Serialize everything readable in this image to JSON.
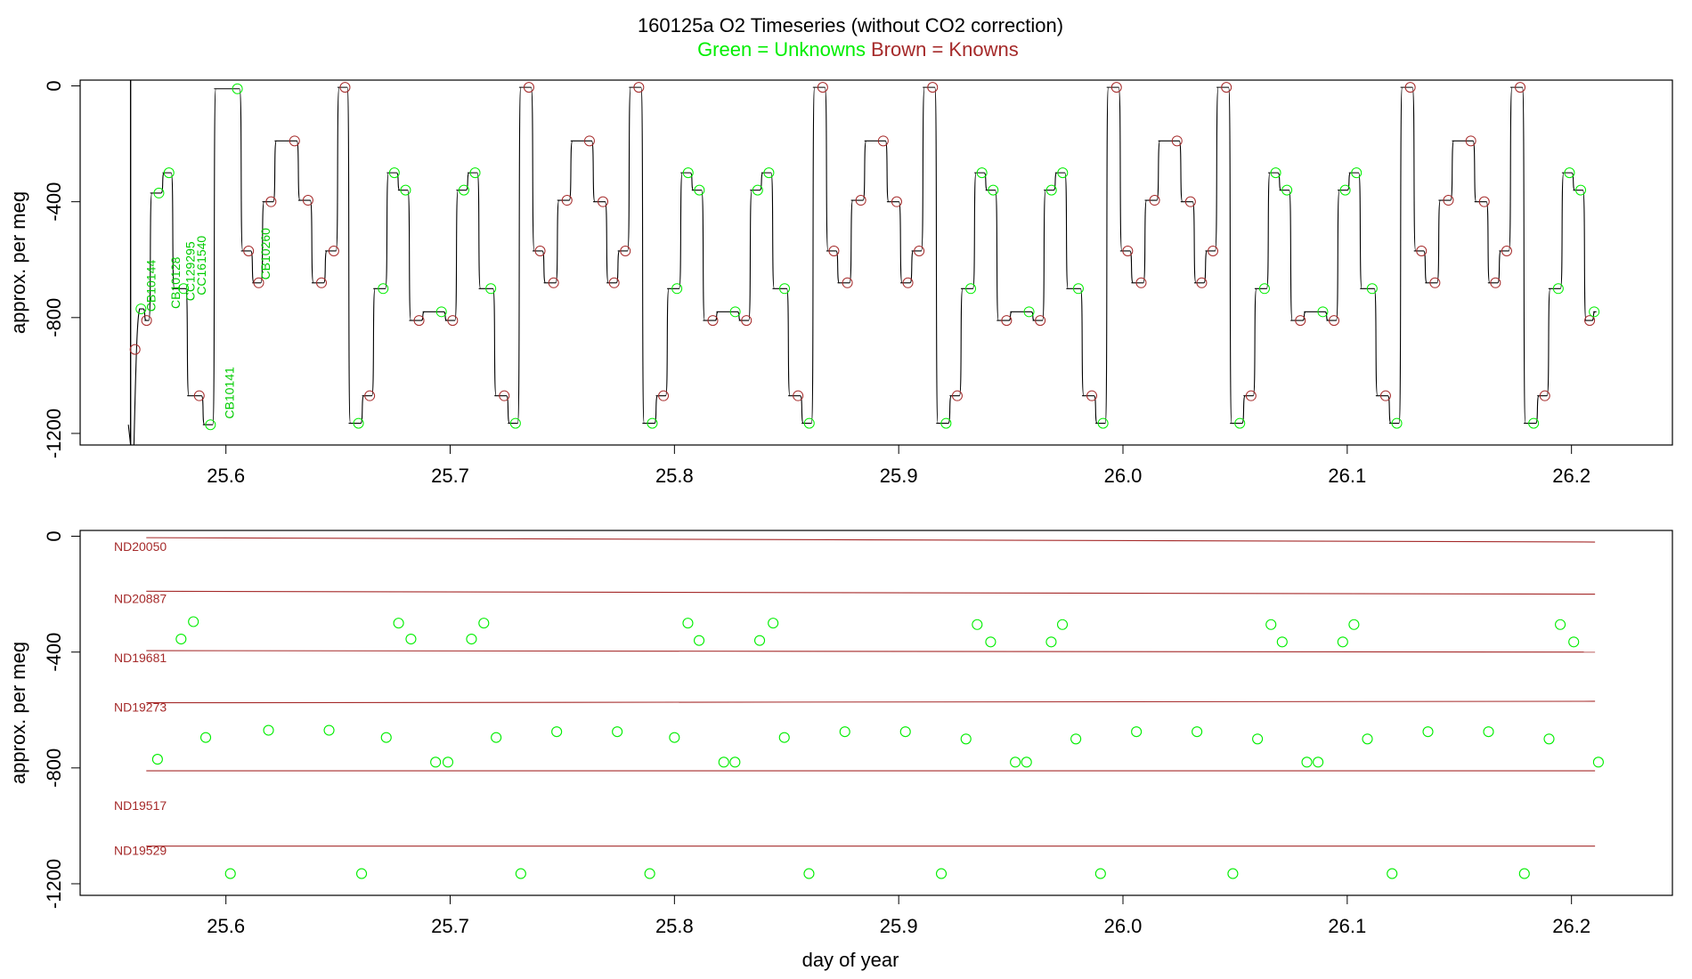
{
  "header": {
    "title": "160125a   O2 Timeseries (without CO2 correction)",
    "legend_unknowns": "Green = Unknowns",
    "legend_knowns": "Brown = Knowns"
  },
  "colors": {
    "unknown": "#00ee00",
    "known": "#a52a2a",
    "trace": "#000000"
  },
  "chart_data": [
    {
      "type": "line",
      "panel": "top",
      "title": "160125a   O2 Timeseries (without CO2 correction)",
      "xlabel": "",
      "ylabel": "approx. per meg",
      "xlim": [
        25.535,
        26.245
      ],
      "ylim": [
        -1240,
        20
      ],
      "xticks": [
        "25.6",
        "25.7",
        "25.8",
        "25.9",
        "26.0",
        "26.1",
        "26.2"
      ],
      "yticks": [
        "0",
        "-400",
        "-800",
        "-1200"
      ],
      "sample_labels": [
        {
          "text": "CB10144",
          "x": 25.5685,
          "y": -690
        },
        {
          "text": "CB10128",
          "x": 25.5795,
          "y": -680
        },
        {
          "text": "CC129295",
          "x": 25.586,
          "y": -640
        },
        {
          "text": "CC161540",
          "x": 25.591,
          "y": -620
        },
        {
          "text": "CB10141",
          "x": 25.6035,
          "y": -1060
        },
        {
          "text": "CB10260",
          "x": 25.6195,
          "y": -580
        }
      ],
      "series": [
        {
          "label": "trace",
          "segments": [
            [
              25.5615,
              -770
            ],
            [
              25.5645,
              -810
            ],
            [
              25.567,
              -370
            ],
            [
              25.5725,
              -300
            ],
            [
              25.577,
              -700
            ],
            [
              25.5835,
              -1070
            ],
            [
              25.5905,
              -1170
            ],
            [
              25.5955,
              -10
            ],
            [
              25.6075,
              -570
            ],
            [
              25.6125,
              -680
            ],
            [
              25.617,
              -400
            ],
            [
              25.6225,
              -190
            ],
            [
              25.633,
              -395
            ],
            [
              25.639,
              -680
            ],
            [
              25.645,
              -570
            ],
            [
              25.6505,
              -5
            ],
            [
              25.6555,
              -1165
            ],
            [
              25.6615,
              -1070
            ],
            [
              25.6665,
              -700
            ],
            [
              25.6725,
              -300
            ],
            [
              25.6775,
              -360
            ],
            [
              25.6825,
              -810
            ],
            [
              25.6885,
              -780
            ],
            [
              25.6985,
              -810
            ],
            [
              25.7035,
              -360
            ],
            [
              25.7085,
              -300
            ],
            [
              25.7135,
              -700
            ],
            [
              25.7205,
              -1070
            ],
            [
              25.7265,
              -1165
            ],
            [
              25.7315,
              -5
            ],
            [
              25.7375,
              -570
            ],
            [
              25.7425,
              -680
            ],
            [
              25.7485,
              -395
            ],
            [
              25.7545,
              -190
            ],
            [
              25.7645,
              -400
            ],
            [
              25.7705,
              -680
            ],
            [
              25.7755,
              -570
            ],
            [
              25.7805,
              -5
            ],
            [
              25.7865,
              -1165
            ],
            [
              25.7925,
              -1070
            ],
            [
              25.7975,
              -700
            ],
            [
              25.8035,
              -300
            ],
            [
              25.8085,
              -360
            ],
            [
              25.8135,
              -810
            ],
            [
              25.8195,
              -780
            ],
            [
              25.8295,
              -810
            ],
            [
              25.8345,
              -360
            ],
            [
              25.8395,
              -300
            ],
            [
              25.8445,
              -700
            ],
            [
              25.8515,
              -1070
            ],
            [
              25.8575,
              -1165
            ],
            [
              25.8625,
              -5
            ],
            [
              25.8685,
              -570
            ],
            [
              25.8735,
              -680
            ],
            [
              25.8795,
              -395
            ],
            [
              25.8855,
              -190
            ],
            [
              25.8955,
              -400
            ],
            [
              25.9015,
              -680
            ],
            [
              25.9065,
              -570
            ],
            [
              25.9115,
              -5
            ],
            [
              25.9175,
              -1165
            ],
            [
              25.9235,
              -1070
            ],
            [
              25.9285,
              -700
            ],
            [
              25.9345,
              -300
            ],
            [
              25.9395,
              -360
            ],
            [
              25.9445,
              -810
            ],
            [
              25.9505,
              -780
            ],
            [
              25.9605,
              -810
            ],
            [
              25.9655,
              -360
            ],
            [
              25.9705,
              -300
            ],
            [
              25.9755,
              -700
            ],
            [
              25.9825,
              -1070
            ],
            [
              25.9885,
              -1165
            ],
            [
              25.9935,
              -5
            ],
            [
              25.9995,
              -570
            ],
            [
              26.0045,
              -680
            ],
            [
              26.0105,
              -395
            ],
            [
              26.0165,
              -190
            ],
            [
              26.0265,
              -400
            ],
            [
              26.0325,
              -680
            ],
            [
              26.0375,
              -570
            ],
            [
              26.0425,
              -5
            ],
            [
              26.0485,
              -1165
            ],
            [
              26.0545,
              -1070
            ],
            [
              26.0595,
              -700
            ],
            [
              26.0655,
              -300
            ],
            [
              26.0705,
              -360
            ],
            [
              26.0755,
              -810
            ],
            [
              26.0815,
              -780
            ],
            [
              26.0915,
              -810
            ],
            [
              26.0965,
              -360
            ],
            [
              26.1015,
              -300
            ],
            [
              26.1065,
              -700
            ],
            [
              26.1135,
              -1070
            ],
            [
              26.1195,
              -1165
            ],
            [
              26.1245,
              -5
            ],
            [
              26.1305,
              -570
            ],
            [
              26.1355,
              -680
            ],
            [
              26.1415,
              -395
            ],
            [
              26.1475,
              -190
            ],
            [
              26.1575,
              -400
            ],
            [
              26.1635,
              -680
            ],
            [
              26.1685,
              -570
            ],
            [
              26.1735,
              -5
            ],
            [
              26.1795,
              -1165
            ],
            [
              26.1855,
              -1070
            ],
            [
              26.1905,
              -700
            ],
            [
              26.1965,
              -300
            ],
            [
              26.2015,
              -360
            ],
            [
              26.2065,
              -810
            ],
            [
              26.2105,
              -780
            ]
          ]
        }
      ]
    },
    {
      "type": "scatter",
      "panel": "bottom",
      "title": "",
      "xlabel": "day of year",
      "ylabel": "approx. per meg",
      "xlim": [
        25.535,
        26.245
      ],
      "ylim": [
        -1240,
        20
      ],
      "xticks": [
        "25.6",
        "25.7",
        "25.8",
        "25.9",
        "26.0",
        "26.1",
        "26.2"
      ],
      "yticks": [
        "0",
        "-400",
        "-800",
        "-1200"
      ],
      "knowns": [
        {
          "name": "ND20050",
          "y_start": -5,
          "y_end": -20,
          "label_y": -35
        },
        {
          "name": "ND20887",
          "y_start": -190,
          "y_end": -200,
          "label_y": -215
        },
        {
          "name": "ND19681",
          "y_start": -395,
          "y_end": -400,
          "label_y": -420
        },
        {
          "name": "ND19273",
          "y_start": -575,
          "y_end": -570,
          "label_y": -590
        },
        {
          "name": "ND19517",
          "y_start": -810,
          "y_end": -810,
          "label_y": -930
        },
        {
          "name": "ND19529",
          "y_start": -1070,
          "y_end": -1070,
          "label_y": -1085
        }
      ],
      "known_x_range": [
        25.5645,
        26.2105
      ],
      "unknowns": [
        [
          25.5695,
          -770
        ],
        [
          25.58,
          -355
        ],
        [
          25.5855,
          -295
        ],
        [
          25.591,
          -695
        ],
        [
          25.602,
          -1165
        ],
        [
          25.619,
          -670
        ],
        [
          25.646,
          -670
        ],
        [
          25.6605,
          -1165
        ],
        [
          25.6715,
          -695
        ],
        [
          25.677,
          -300
        ],
        [
          25.6825,
          -355
        ],
        [
          25.6935,
          -780
        ],
        [
          25.699,
          -780
        ],
        [
          25.7095,
          -355
        ],
        [
          25.715,
          -300
        ],
        [
          25.7205,
          -695
        ],
        [
          25.7315,
          -1165
        ],
        [
          25.7475,
          -675
        ],
        [
          25.7745,
          -675
        ],
        [
          25.789,
          -1165
        ],
        [
          25.8,
          -695
        ],
        [
          25.806,
          -300
        ],
        [
          25.811,
          -360
        ],
        [
          25.822,
          -780
        ],
        [
          25.827,
          -780
        ],
        [
          25.838,
          -360
        ],
        [
          25.844,
          -300
        ],
        [
          25.849,
          -695
        ],
        [
          25.86,
          -1165
        ],
        [
          25.876,
          -675
        ],
        [
          25.903,
          -675
        ],
        [
          25.919,
          -1165
        ],
        [
          25.93,
          -700
        ],
        [
          25.935,
          -305
        ],
        [
          25.941,
          -365
        ],
        [
          25.952,
          -780
        ],
        [
          25.957,
          -780
        ],
        [
          25.968,
          -365
        ],
        [
          25.973,
          -305
        ],
        [
          25.979,
          -700
        ],
        [
          25.99,
          -1165
        ],
        [
          26.006,
          -675
        ],
        [
          26.033,
          -675
        ],
        [
          26.049,
          -1165
        ],
        [
          26.06,
          -700
        ],
        [
          26.066,
          -305
        ],
        [
          26.071,
          -365
        ],
        [
          26.082,
          -780
        ],
        [
          26.087,
          -780
        ],
        [
          26.098,
          -365
        ],
        [
          26.103,
          -305
        ],
        [
          26.109,
          -700
        ],
        [
          26.12,
          -1165
        ],
        [
          26.136,
          -675
        ],
        [
          26.163,
          -675
        ],
        [
          26.179,
          -1165
        ],
        [
          26.19,
          -700
        ],
        [
          26.195,
          -305
        ],
        [
          26.201,
          -365
        ],
        [
          26.212,
          -780
        ]
      ]
    }
  ]
}
